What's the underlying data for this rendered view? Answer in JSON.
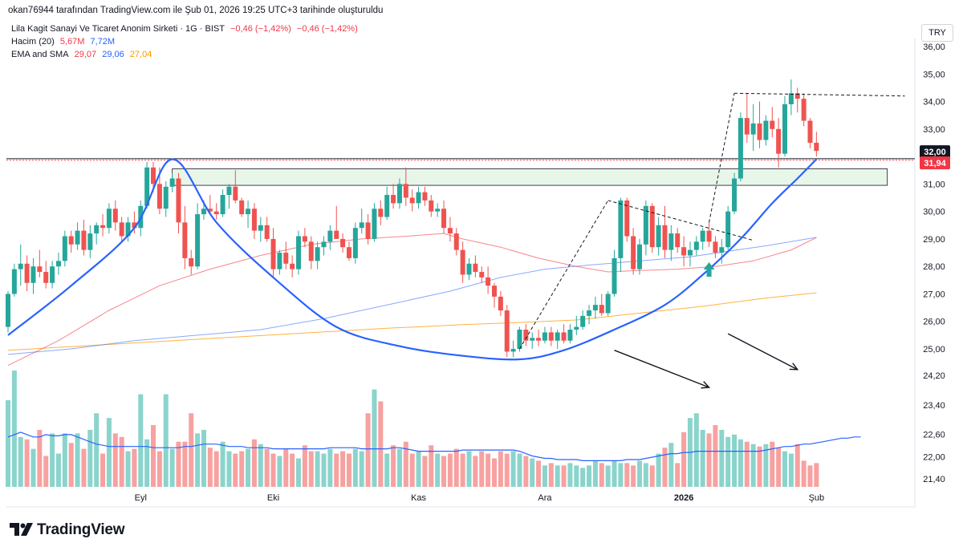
{
  "header": {
    "attribution": "okan76944 tarafından TradingView.com ile Şub 01, 2026 19:25 UTC+3 tarihinde oluşturuldu"
  },
  "legend": {
    "symbol": "Lila Kagit Sanayi Ve Ticaret Anonim Sirketi · 1G · BIST",
    "change1": "−0,46 (−1,42%)",
    "change2": "−0,46 (−1,42%)",
    "volume_label": "Hacim (20)",
    "volume_value": "5,67M",
    "volume_ma": "7,72M",
    "ema_label": "EMA and SMA",
    "ema_values": [
      "29,07",
      "29,06",
      "27,04"
    ]
  },
  "currency": "TRY",
  "brand": "TradingView",
  "colors": {
    "up": "#26a69a",
    "down": "#ef5350",
    "vol_up": "#8ad4cc",
    "vol_down": "#f7a1a1",
    "ema_red": "#f23645",
    "sma_blue": "#2962ff",
    "sma_orange": "#ff9800",
    "pattern": "#2962ff",
    "zone_fill": "#e8f5e9"
  },
  "chart_data": {
    "type": "candlestick",
    "y_ticks": [
      "36,00",
      "35,00",
      "34,00",
      "33,00",
      "32,00",
      "31,00",
      "30,00",
      "29,00",
      "28,00",
      "27,00",
      "26,00",
      "25,00",
      "24,20",
      "23,40",
      "22,60",
      "22,00",
      "21,40"
    ],
    "price_axis_top": 36.0,
    "price_axis_25": 25.0,
    "x_labels": [
      {
        "label": "Eyl",
        "bar": 21
      },
      {
        "label": "Eki",
        "bar": 42
      },
      {
        "label": "Kas",
        "bar": 65
      },
      {
        "label": "Ara",
        "bar": 85
      },
      {
        "label": "2026",
        "bar": 107
      },
      {
        "label": "Şub",
        "bar": 128
      }
    ],
    "last_price_tags": [
      {
        "value": "32,00",
        "price": 32.0,
        "style": "dark"
      },
      {
        "value": "31,94",
        "price": 31.94,
        "style": "red"
      }
    ],
    "horizontal_line_price": 31.92,
    "resistance_zone": {
      "from_price": 30.95,
      "to_price": 31.55,
      "from_bar": 26,
      "to_bar": 141
    },
    "cup_arc": [
      [
        0,
        25.5
      ],
      [
        10,
        27.3
      ],
      [
        20,
        29.4
      ],
      [
        26,
        31.9
      ],
      [
        33,
        29.6
      ],
      [
        42,
        27.6
      ],
      [
        52,
        25.8
      ],
      [
        62,
        25.1
      ],
      [
        72,
        24.75
      ],
      [
        81,
        24.62
      ],
      [
        88,
        24.95
      ],
      [
        96,
        25.7
      ],
      [
        104,
        26.6
      ],
      [
        110,
        27.7
      ],
      [
        116,
        29.0
      ],
      [
        121,
        30.3
      ],
      [
        125,
        31.2
      ],
      [
        128,
        31.9
      ]
    ],
    "dashed_lines": [
      [
        [
          81,
          25.0
        ],
        [
          95,
          30.4
        ]
      ],
      [
        [
          95,
          30.4
        ],
        [
          118,
          28.95
        ]
      ],
      [
        [
          111,
          29.6
        ],
        [
          115,
          34.3
        ]
      ],
      [
        [
          115,
          34.3
        ],
        [
          142,
          34.2
        ]
      ]
    ],
    "up_arrow": {
      "bar": 111,
      "price": 27.8
    },
    "trend_arrows": [
      {
        "from_bar": 96,
        "from_price": 24.95,
        "to_bar": 111,
        "to_price": 23.6
      },
      {
        "from_bar": 114,
        "from_price": 25.55,
        "to_bar": 125,
        "to_price": 24.25
      }
    ],
    "ohlc": [
      [
        25.8,
        27.1,
        25.6,
        27.0
      ],
      [
        27.0,
        28.1,
        26.9,
        27.9
      ],
      [
        27.9,
        28.8,
        27.3,
        28.1
      ],
      [
        28.1,
        28.4,
        27.1,
        27.4
      ],
      [
        27.4,
        28.3,
        27.0,
        28.0
      ],
      [
        28.0,
        28.6,
        27.6,
        27.8
      ],
      [
        27.8,
        28.2,
        27.2,
        27.4
      ],
      [
        27.4,
        28.2,
        27.2,
        28.0
      ],
      [
        28.0,
        28.5,
        27.7,
        28.2
      ],
      [
        28.2,
        29.3,
        28.0,
        29.1
      ],
      [
        29.1,
        29.3,
        28.5,
        28.8
      ],
      [
        28.8,
        29.6,
        28.6,
        29.3
      ],
      [
        29.3,
        29.7,
        28.4,
        28.6
      ],
      [
        28.6,
        29.5,
        28.3,
        29.2
      ],
      [
        29.2,
        29.6,
        28.8,
        29.5
      ],
      [
        29.5,
        29.9,
        29.1,
        29.4
      ],
      [
        29.4,
        30.3,
        29.2,
        30.1
      ],
      [
        30.1,
        30.4,
        29.3,
        29.6
      ],
      [
        29.6,
        29.8,
        28.9,
        29.1
      ],
      [
        29.1,
        29.8,
        28.9,
        29.6
      ],
      [
        29.6,
        30.0,
        29.2,
        29.4
      ],
      [
        29.4,
        30.4,
        29.1,
        30.2
      ],
      [
        30.2,
        31.8,
        30.1,
        31.6
      ],
      [
        31.6,
        31.8,
        30.7,
        31.0
      ],
      [
        31.0,
        31.6,
        29.9,
        30.1
      ],
      [
        30.1,
        31.1,
        29.8,
        30.9
      ],
      [
        30.9,
        31.4,
        30.7,
        31.2
      ],
      [
        31.2,
        31.4,
        29.2,
        29.6
      ],
      [
        29.6,
        30.2,
        27.9,
        28.3
      ],
      [
        28.3,
        28.6,
        27.7,
        28.0
      ],
      [
        28.0,
        30.3,
        27.9,
        29.9
      ],
      [
        29.9,
        30.4,
        29.7,
        30.1
      ],
      [
        30.1,
        30.6,
        29.9,
        30.0
      ],
      [
        30.0,
        30.3,
        29.7,
        29.9
      ],
      [
        29.9,
        30.8,
        29.8,
        30.6
      ],
      [
        30.6,
        31.0,
        30.1,
        30.9
      ],
      [
        30.9,
        31.5,
        30.3,
        30.4
      ],
      [
        30.4,
        30.5,
        29.8,
        29.9
      ],
      [
        29.9,
        30.4,
        29.4,
        30.1
      ],
      [
        30.1,
        30.3,
        29.0,
        29.3
      ],
      [
        29.3,
        29.8,
        28.9,
        29.5
      ],
      [
        29.5,
        29.8,
        28.9,
        29.0
      ],
      [
        29.0,
        29.4,
        27.6,
        27.9
      ],
      [
        27.9,
        28.6,
        27.7,
        28.5
      ],
      [
        28.5,
        28.9,
        27.9,
        28.1
      ],
      [
        28.1,
        28.4,
        27.6,
        27.9
      ],
      [
        27.9,
        29.3,
        27.7,
        29.1
      ],
      [
        29.1,
        29.4,
        28.7,
        28.9
      ],
      [
        28.9,
        29.1,
        27.9,
        28.2
      ],
      [
        28.2,
        28.9,
        27.9,
        28.7
      ],
      [
        28.7,
        29.1,
        28.4,
        28.9
      ],
      [
        28.9,
        29.5,
        28.6,
        29.3
      ],
      [
        29.3,
        30.2,
        29.1,
        29.0
      ],
      [
        29.0,
        29.2,
        28.5,
        28.7
      ],
      [
        28.7,
        28.9,
        28.2,
        28.3
      ],
      [
        28.3,
        29.6,
        28.1,
        29.4
      ],
      [
        29.4,
        30.1,
        29.2,
        29.6
      ],
      [
        29.6,
        29.9,
        28.8,
        29.0
      ],
      [
        29.0,
        30.3,
        28.9,
        30.1
      ],
      [
        30.1,
        30.4,
        29.5,
        29.8
      ],
      [
        29.8,
        30.9,
        29.7,
        30.6
      ],
      [
        30.6,
        31.0,
        30.1,
        30.3
      ],
      [
        30.3,
        31.2,
        30.1,
        31.0
      ],
      [
        31.0,
        31.6,
        30.2,
        30.5
      ],
      [
        30.5,
        30.8,
        30.0,
        30.3
      ],
      [
        30.3,
        30.9,
        30.1,
        30.7
      ],
      [
        30.7,
        30.9,
        30.2,
        30.4
      ],
      [
        30.4,
        30.6,
        29.8,
        30.0
      ],
      [
        30.0,
        30.3,
        29.8,
        30.1
      ],
      [
        30.1,
        30.4,
        29.2,
        29.4
      ],
      [
        29.4,
        29.8,
        28.9,
        29.2
      ],
      [
        29.2,
        29.4,
        28.4,
        28.6
      ],
      [
        28.6,
        28.9,
        27.4,
        27.7
      ],
      [
        27.7,
        28.3,
        27.5,
        28.1
      ],
      [
        28.1,
        28.4,
        27.6,
        27.8
      ],
      [
        27.8,
        28.0,
        27.4,
        27.6
      ],
      [
        27.6,
        28.0,
        27.0,
        27.3
      ],
      [
        27.3,
        27.4,
        26.5,
        26.9
      ],
      [
        26.9,
        27.1,
        26.2,
        26.4
      ],
      [
        26.4,
        26.6,
        24.7,
        24.9
      ],
      [
        24.9,
        25.3,
        24.7,
        25.0
      ],
      [
        25.0,
        25.8,
        24.9,
        25.7
      ],
      [
        25.7,
        25.9,
        25.1,
        25.3
      ],
      [
        25.3,
        25.6,
        25.0,
        25.4
      ],
      [
        25.4,
        25.7,
        25.1,
        25.3
      ],
      [
        25.3,
        25.8,
        25.2,
        25.6
      ],
      [
        25.6,
        25.8,
        25.1,
        25.3
      ],
      [
        25.3,
        25.7,
        25.0,
        25.6
      ],
      [
        25.6,
        25.9,
        25.2,
        25.3
      ],
      [
        25.3,
        25.9,
        25.2,
        25.7
      ],
      [
        25.7,
        26.2,
        25.5,
        25.8
      ],
      [
        25.8,
        26.4,
        25.7,
        26.2
      ],
      [
        26.2,
        26.6,
        25.9,
        26.4
      ],
      [
        26.4,
        26.9,
        26.1,
        26.6
      ],
      [
        26.6,
        27.0,
        26.2,
        26.3
      ],
      [
        26.3,
        27.1,
        26.2,
        27.0
      ],
      [
        27.0,
        28.6,
        26.9,
        28.3
      ],
      [
        28.3,
        30.5,
        27.8,
        30.4
      ],
      [
        30.4,
        30.5,
        28.9,
        29.1
      ],
      [
        29.1,
        29.4,
        27.7,
        27.9
      ],
      [
        27.9,
        29.0,
        27.7,
        28.8
      ],
      [
        28.8,
        30.4,
        28.4,
        30.2
      ],
      [
        30.2,
        30.3,
        28.5,
        28.7
      ],
      [
        28.7,
        29.8,
        28.4,
        29.5
      ],
      [
        29.5,
        30.2,
        28.3,
        28.6
      ],
      [
        28.6,
        29.5,
        28.2,
        29.2
      ],
      [
        29.2,
        29.4,
        28.5,
        28.7
      ],
      [
        28.7,
        29.1,
        28.0,
        28.4
      ],
      [
        28.4,
        28.9,
        28.0,
        28.6
      ],
      [
        28.6,
        29.1,
        28.4,
        28.9
      ],
      [
        28.9,
        29.4,
        28.6,
        29.3
      ],
      [
        29.3,
        29.6,
        28.7,
        28.9
      ],
      [
        28.9,
        29.1,
        28.3,
        28.5
      ],
      [
        28.5,
        29.0,
        28.1,
        28.7
      ],
      [
        28.7,
        30.2,
        28.6,
        30.0
      ],
      [
        30.0,
        31.4,
        29.9,
        31.2
      ],
      [
        31.2,
        33.6,
        31.1,
        33.4
      ],
      [
        33.4,
        34.3,
        32.5,
        32.8
      ],
      [
        32.8,
        33.9,
        32.2,
        33.2
      ],
      [
        33.2,
        34.0,
        32.3,
        32.6
      ],
      [
        32.6,
        33.5,
        32.4,
        33.3
      ],
      [
        33.3,
        33.8,
        32.7,
        33.0
      ],
      [
        33.0,
        33.4,
        31.6,
        32.1
      ],
      [
        32.1,
        34.2,
        32.0,
        33.9
      ],
      [
        33.9,
        34.8,
        33.5,
        34.3
      ],
      [
        34.3,
        34.5,
        33.6,
        34.1
      ],
      [
        34.1,
        34.3,
        33.1,
        33.3
      ],
      [
        33.3,
        33.4,
        32.3,
        32.5
      ],
      [
        32.5,
        32.9,
        32.0,
        32.2
      ]
    ],
    "volume_levels": [
      0.73,
      0.98,
      0.42,
      0.4,
      0.32,
      0.48,
      0.26,
      0.45,
      0.28,
      0.45,
      0.37,
      0.45,
      0.32,
      0.48,
      0.62,
      0.28,
      0.58,
      0.45,
      0.42,
      0.3,
      0.32,
      0.78,
      0.4,
      0.52,
      0.3,
      0.78,
      0.32,
      0.38,
      0.38,
      0.62,
      0.45,
      0.48,
      0.33,
      0.3,
      0.38,
      0.3,
      0.28,
      0.3,
      0.32,
      0.4,
      0.36,
      0.32,
      0.28,
      0.26,
      0.32,
      0.28,
      0.24,
      0.35,
      0.3,
      0.3,
      0.28,
      0.32,
      0.28,
      0.3,
      0.28,
      0.32,
      0.3,
      0.62,
      0.82,
      0.72,
      0.28,
      0.35,
      0.32,
      0.38,
      0.28,
      0.3,
      0.26,
      0.35,
      0.28,
      0.26,
      0.28,
      0.32,
      0.28,
      0.3,
      0.26,
      0.3,
      0.28,
      0.24,
      0.3,
      0.28,
      0.3,
      0.28,
      0.26,
      0.24,
      0.22,
      0.18,
      0.2,
      0.18,
      0.18,
      0.2,
      0.18,
      0.16,
      0.18,
      0.22,
      0.2,
      0.18,
      0.22,
      0.2,
      0.2,
      0.18,
      0.22,
      0.2,
      0.18,
      0.28,
      0.33,
      0.37,
      0.2,
      0.46,
      0.58,
      0.62,
      0.48,
      0.45,
      0.52,
      0.48,
      0.42,
      0.44,
      0.4,
      0.38,
      0.36,
      0.34,
      0.36,
      0.38,
      0.33,
      0.3,
      0.28,
      0.36,
      0.22,
      0.18,
      0.2,
      0.15,
      0.18,
      0.22,
      0.2,
      0.18
    ],
    "volume_ma_levels": [
      0.42,
      0.44,
      0.46,
      0.44,
      0.42,
      0.42,
      0.44,
      0.43,
      0.43,
      0.44,
      0.44,
      0.42,
      0.4,
      0.38,
      0.36,
      0.35,
      0.34,
      0.34,
      0.34,
      0.34,
      0.34,
      0.34,
      0.34,
      0.33,
      0.33,
      0.33,
      0.33,
      0.33,
      0.34,
      0.34,
      0.35,
      0.36,
      0.36,
      0.36,
      0.35,
      0.34,
      0.34,
      0.34,
      0.33,
      0.33,
      0.33,
      0.33,
      0.32,
      0.32,
      0.32,
      0.32,
      0.32,
      0.32,
      0.32,
      0.32,
      0.32,
      0.33,
      0.33,
      0.33,
      0.33,
      0.33,
      0.32,
      0.32,
      0.32,
      0.32,
      0.32,
      0.33,
      0.33,
      0.32,
      0.31,
      0.3,
      0.3,
      0.3,
      0.3,
      0.3,
      0.3,
      0.3,
      0.31,
      0.31,
      0.31,
      0.31,
      0.31,
      0.31,
      0.31,
      0.31,
      0.31,
      0.3,
      0.28,
      0.26,
      0.25,
      0.24,
      0.24,
      0.23,
      0.23,
      0.23,
      0.23,
      0.22,
      0.22,
      0.22,
      0.22,
      0.22,
      0.22,
      0.22,
      0.23,
      0.23,
      0.23,
      0.24,
      0.25,
      0.26,
      0.27,
      0.28,
      0.28,
      0.29,
      0.29,
      0.3,
      0.3,
      0.3,
      0.3,
      0.3,
      0.3,
      0.3,
      0.3,
      0.3,
      0.3,
      0.3,
      0.31,
      0.32,
      0.33,
      0.34,
      0.34,
      0.35,
      0.36,
      0.36,
      0.37,
      0.38,
      0.39,
      0.4,
      0.41,
      0.41,
      0.42,
      0.42
    ],
    "ema_red_line": [
      [
        0,
        24.4
      ],
      [
        8,
        25.3
      ],
      [
        16,
        26.4
      ],
      [
        24,
        27.3
      ],
      [
        32,
        27.9
      ],
      [
        40,
        28.4
      ],
      [
        48,
        28.8
      ],
      [
        56,
        29.0
      ],
      [
        63,
        29.1
      ],
      [
        69,
        29.2
      ],
      [
        72,
        29.0
      ],
      [
        78,
        28.7
      ],
      [
        84,
        28.3
      ],
      [
        90,
        28.0
      ],
      [
        95,
        27.8
      ],
      [
        100,
        27.85
      ],
      [
        106,
        27.9
      ],
      [
        112,
        28.0
      ],
      [
        118,
        28.2
      ],
      [
        124,
        28.6
      ],
      [
        128,
        29.05
      ]
    ],
    "sma_blue_line": [
      [
        0,
        24.8
      ],
      [
        10,
        25.0
      ],
      [
        20,
        25.3
      ],
      [
        30,
        25.5
      ],
      [
        40,
        25.7
      ],
      [
        50,
        26.1
      ],
      [
        60,
        26.6
      ],
      [
        70,
        27.1
      ],
      [
        78,
        27.6
      ],
      [
        85,
        27.9
      ],
      [
        92,
        28.05
      ],
      [
        100,
        28.2
      ],
      [
        108,
        28.35
      ],
      [
        114,
        28.55
      ],
      [
        120,
        28.75
      ],
      [
        128,
        29.06
      ]
    ],
    "sma_orange_line": [
      [
        0,
        24.95
      ],
      [
        15,
        25.15
      ],
      [
        30,
        25.35
      ],
      [
        45,
        25.55
      ],
      [
        60,
        25.75
      ],
      [
        72,
        25.88
      ],
      [
        80,
        25.95
      ],
      [
        90,
        26.05
      ],
      [
        100,
        26.3
      ],
      [
        110,
        26.55
      ],
      [
        120,
        26.85
      ],
      [
        128,
        27.04
      ]
    ]
  }
}
